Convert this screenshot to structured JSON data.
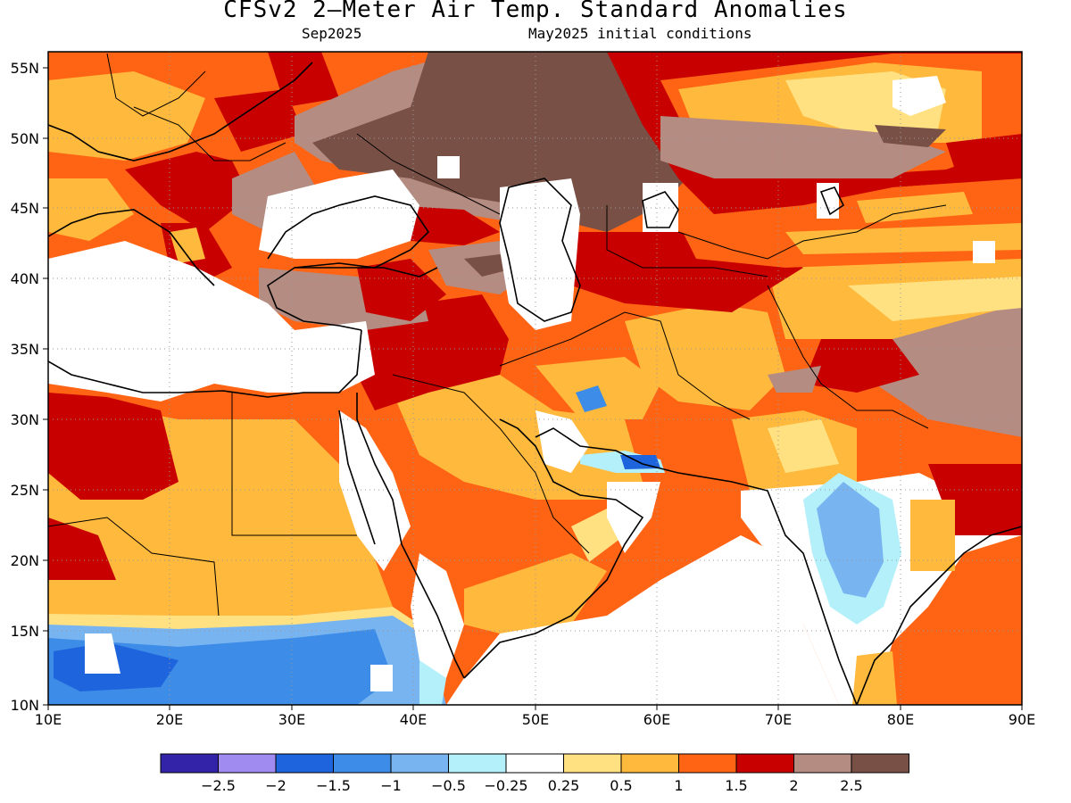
{
  "title": "CFSv2 2–Meter Air Temp. Standard Anomalies",
  "subtitle_left": "Sep2025",
  "subtitle_right": "May2025 initial conditions",
  "lon_labels": [
    "10E",
    "20E",
    "30E",
    "40E",
    "50E",
    "60E",
    "70E",
    "80E",
    "90E"
  ],
  "lat_labels": [
    "55N",
    "50N",
    "45N",
    "40N",
    "35N",
    "30N",
    "25N",
    "20N",
    "15N",
    "10N"
  ],
  "colorbar": {
    "colors": [
      "#3223a8",
      "#a08cf0",
      "#1e64dc",
      "#3c8ce8",
      "#78b4f0",
      "#b4f0fa",
      "#ffffff",
      "#ffe182",
      "#ffb93c",
      "#ff6414",
      "#c80000",
      "#b48c82",
      "#785046"
    ],
    "labels": [
      "−2.5",
      "−2",
      "−1.5",
      "−1",
      "−0.5",
      "−0.25",
      "0.25",
      "0.5",
      "1",
      "1.5",
      "2",
      "2.5"
    ]
  }
}
